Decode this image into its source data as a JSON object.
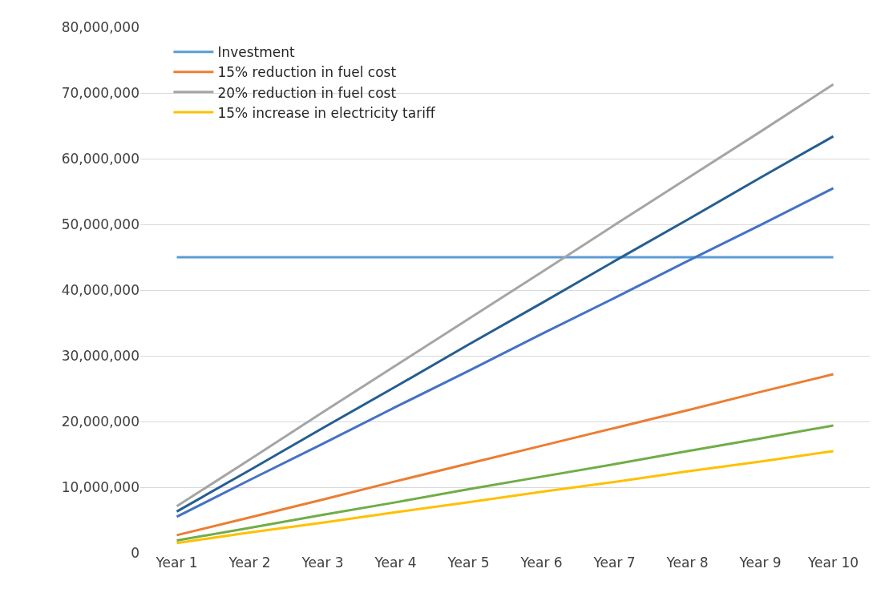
{
  "chart_data": {
    "type": "line",
    "categories": [
      "Year 1",
      "Year 2",
      "Year 3",
      "Year 4",
      "Year 5",
      "Year 6",
      "Year 7",
      "Year 8",
      "Year 9",
      "Year 10"
    ],
    "series": [
      {
        "name": "Investment",
        "color": "#5b9bd5",
        "values": [
          45000000,
          45000000,
          45000000,
          45000000,
          45000000,
          45000000,
          45000000,
          45000000,
          45000000,
          45000000
        ]
      },
      {
        "name": "15% reduction in fuel cost",
        "color": "#ed7d31",
        "values": [
          2700000,
          5400000,
          8100000,
          10900000,
          13600000,
          16300000,
          19000000,
          21700000,
          24500000,
          27200000
        ]
      },
      {
        "name": "20% reduction in fuel cost",
        "color": "#a5a5a5",
        "values": [
          7100000,
          14200000,
          21400000,
          28500000,
          35600000,
          42700000,
          49900000,
          57000000,
          64100000,
          71300000
        ]
      },
      {
        "name": "15% increase in electricity tariff",
        "color": "#ffc000",
        "values": [
          1500000,
          3100000,
          4600000,
          6200000,
          7700000,
          9300000,
          10800000,
          12400000,
          13900000,
          15500000
        ]
      },
      {
        "color": "#255e91",
        "values": [
          6300000,
          12600000,
          19000000,
          25300000,
          31700000,
          38000000,
          44400000,
          50700000,
          57100000,
          63400000
        ]
      },
      {
        "color": "#4472c4",
        "values": [
          5500000,
          11100000,
          16600000,
          22200000,
          27700000,
          33300000,
          38800000,
          44400000,
          49900000,
          55500000
        ]
      },
      {
        "color": "#70ad47",
        "values": [
          1900000,
          3800000,
          5800000,
          7700000,
          9700000,
          11600000,
          13500000,
          15500000,
          17400000,
          19400000
        ]
      }
    ],
    "ylim": [
      0,
      80000000
    ],
    "yticks": [
      0,
      {
        "value": 10000000,
        "label": "10,000,000"
      },
      {
        "value": 20000000,
        "label": "20,000,000"
      },
      {
        "value": 30000000,
        "label": "30,000,000"
      },
      {
        "value": 40000000,
        "label": "40,000,000"
      },
      {
        "value": 50000000,
        "label": "50,000,000"
      },
      {
        "value": 60000000,
        "label": "60,000,000"
      },
      {
        "value": 70000000,
        "label": "70,000,000"
      },
      {
        "value": 80000000,
        "label": "80,000,000"
      }
    ],
    "grid": "y",
    "legend": "top left",
    "marker": "none",
    "line_style": "solid"
  }
}
